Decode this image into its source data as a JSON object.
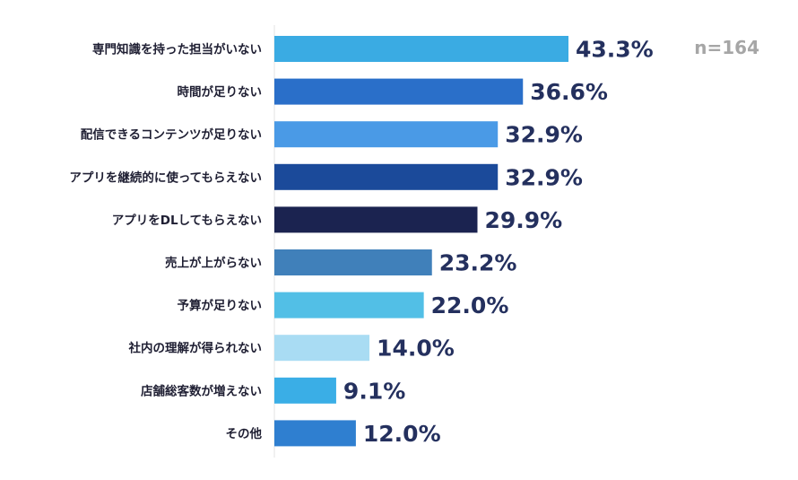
{
  "chart_data": {
    "type": "bar",
    "orientation": "horizontal",
    "categories": [
      "専門知識を持った担当がいない",
      "時間が足りない",
      "配信できるコンテンツが足りない",
      "アプリを継続的に使ってもらえない",
      "アプリをDLしてもらえない",
      "売上が上がらない",
      "予算が足りない",
      "社内の理解が得られない",
      "店舗総客数が増えない",
      "その他"
    ],
    "values": [
      43.3,
      36.6,
      32.9,
      32.9,
      29.9,
      23.2,
      22.0,
      14.0,
      9.1,
      12.0
    ],
    "value_labels": [
      "43.3%",
      "36.6%",
      "32.9%",
      "32.9%",
      "29.9%",
      "23.2%",
      "22.0%",
      "14.0%",
      "9.1%",
      "12.0%"
    ],
    "colors": [
      "#3aabe3",
      "#2a6fc9",
      "#4a9ae6",
      "#1b4a9a",
      "#1b2350",
      "#4080ba",
      "#52bfe6",
      "#a9dcf3",
      "#3aaee6",
      "#2f7fd0"
    ],
    "sample_label": "n=164",
    "xlim": [
      0,
      45
    ],
    "grid": false,
    "legend": "none"
  }
}
